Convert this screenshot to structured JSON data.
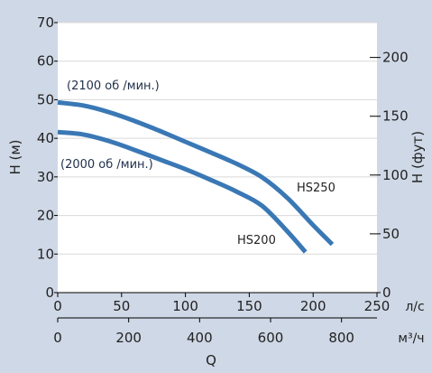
{
  "chart_data": {
    "type": "line",
    "y_left": {
      "label": "H (м)",
      "range": [
        0,
        70
      ],
      "ticks": [
        0,
        10,
        20,
        30,
        40,
        50,
        60,
        70
      ]
    },
    "y_right": {
      "label": "H (фут)",
      "range": [
        0,
        229.66
      ],
      "ticks": [
        0,
        50,
        100,
        150,
        200
      ]
    },
    "x_primary": {
      "unit": "л/с",
      "range": [
        0,
        250
      ],
      "ticks": [
        0,
        50,
        100,
        150,
        200,
        250
      ]
    },
    "x_secondary": {
      "unit": "м³/ч",
      "range": [
        0,
        900
      ],
      "ticks": [
        0,
        200,
        400,
        600,
        800
      ]
    },
    "x_title": "Q",
    "grid": true,
    "series": [
      {
        "name": "HS250",
        "annotation": "(2100 об /мин.)",
        "color": "#3a78b5",
        "x": [
          0,
          20,
          40,
          60,
          80,
          100,
          120,
          140,
          160,
          180,
          200,
          215
        ],
        "y": [
          49.3,
          48.5,
          46.8,
          44.5,
          41.9,
          39.1,
          36.3,
          33.4,
          29.9,
          24.5,
          17.5,
          12.5
        ]
      },
      {
        "name": "HS200",
        "annotation": "(2000 об /мин.)",
        "color": "#3a78b5",
        "x": [
          0,
          20,
          40,
          60,
          80,
          100,
          120,
          140,
          160,
          180,
          194
        ],
        "y": [
          41.6,
          41.0,
          39.3,
          37.0,
          34.5,
          32.0,
          29.2,
          26.2,
          22.5,
          15.8,
          10.5
        ]
      }
    ]
  }
}
